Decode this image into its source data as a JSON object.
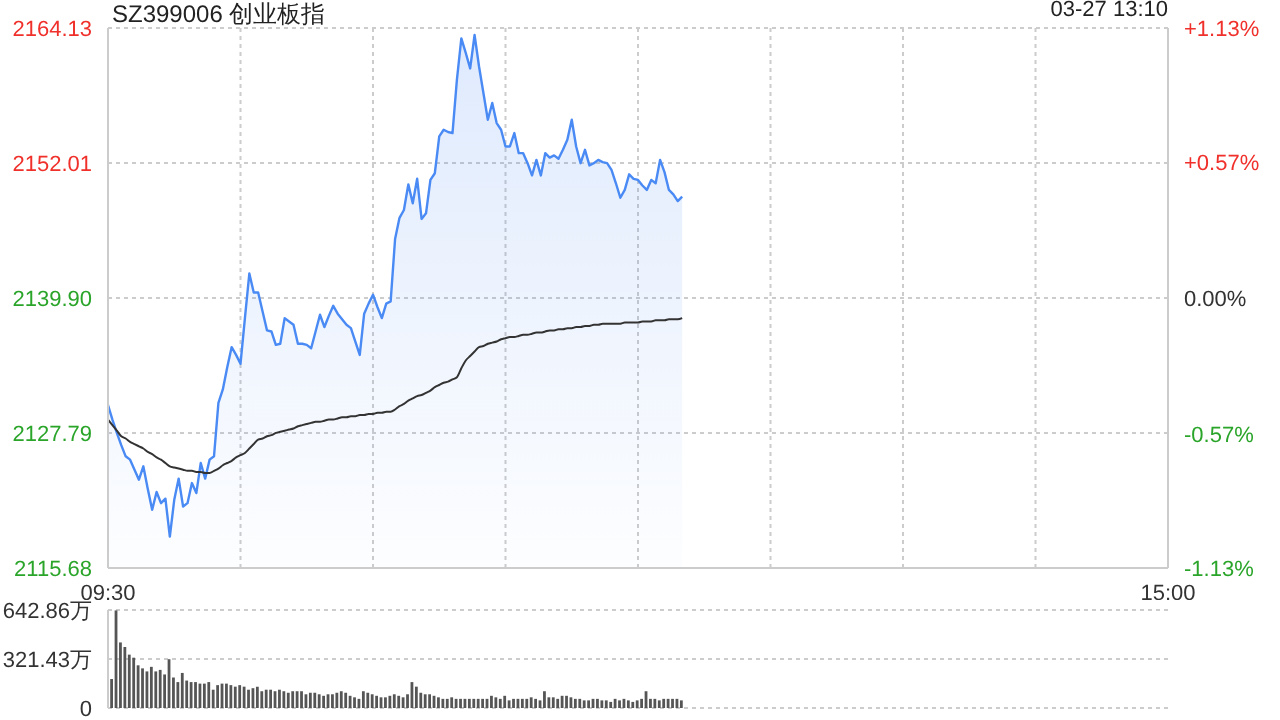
{
  "chart_data": [
    {
      "type": "area",
      "title": "SZ399006 创业板指",
      "annotations": [
        "03-27 13:10"
      ],
      "categories": [
        "09:30",
        null,
        null,
        null,
        null,
        null,
        null,
        null,
        null,
        null,
        null,
        null,
        null,
        null,
        null,
        null,
        null,
        null,
        null,
        null,
        null,
        null,
        null,
        null,
        null,
        null,
        null,
        null,
        null,
        null,
        null,
        null,
        null,
        null,
        null,
        null,
        null,
        null,
        null,
        null,
        null,
        null,
        null,
        null,
        null,
        null,
        null,
        null,
        null,
        null,
        null,
        null,
        null,
        null,
        null,
        null,
        null,
        null,
        null,
        null,
        null,
        null,
        null,
        null,
        null,
        null,
        null,
        null,
        null,
        null,
        null,
        null,
        null,
        null,
        null,
        null,
        null,
        null,
        null,
        null,
        null,
        null,
        null,
        null,
        null,
        null,
        null,
        null,
        null,
        null,
        null,
        null,
        null,
        null,
        null,
        null,
        null,
        null,
        null,
        null,
        null,
        null,
        null,
        null,
        null,
        null,
        null,
        null,
        null,
        null,
        null,
        null,
        null,
        null,
        null,
        null,
        null,
        null,
        null,
        null,
        null,
        null,
        null,
        null,
        null,
        null,
        null,
        null,
        null,
        null,
        null,
        null,
        null,
        null,
        null,
        null,
        null,
        null,
        null,
        null,
        null,
        null,
        null,
        null,
        null,
        null,
        null,
        null,
        null,
        null,
        null,
        null,
        null,
        null,
        null,
        null,
        null,
        null,
        null,
        null,
        null,
        null,
        null,
        null,
        null,
        null,
        null,
        null,
        null,
        null,
        null,
        null,
        null,
        null,
        null,
        null,
        null,
        null,
        null,
        null,
        null,
        null,
        null,
        null,
        null,
        null,
        null,
        null,
        null,
        null,
        null,
        null,
        null,
        null,
        null,
        null,
        null,
        null,
        null,
        null,
        null,
        null,
        null,
        null,
        null,
        null,
        null,
        null,
        null,
        null,
        null,
        null,
        null,
        null,
        null,
        null,
        null,
        null,
        null,
        null,
        null,
        null,
        null,
        null,
        null,
        null,
        null,
        null,
        null,
        null,
        null,
        null,
        null,
        null,
        null,
        null,
        null,
        null,
        null,
        null,
        "15:00"
      ],
      "ylim": [
        2115.68,
        2164.13
      ],
      "yticks": [
        2115.68,
        2127.79,
        {
          "value": 2139.9,
          "label": "2139.90"
        },
        2152.01,
        2164.13
      ],
      "y2lim": [
        -1.13,
        1.13
      ],
      "y2ticks": [
        {
          "value": -1.13,
          "label": "-1.13%"
        },
        {
          "value": -0.57,
          "label": "-0.57%"
        },
        {
          "value": 0,
          "label": "0.00%"
        },
        {
          "value": 0.57,
          "label": "+0.57%"
        },
        {
          "value": 1.13,
          "label": "+1.13%"
        }
      ],
      "grid": true,
      "marker": "none",
      "series": [
        {
          "color": "#4a8af4",
          "values": [
            2130.3,
            2129.0,
            2127.8,
            2126.7,
            2125.7,
            2125.4,
            2124.5,
            2123.6,
            2124.8,
            2122.8,
            2120.9,
            2122.5,
            2121.5,
            2121.9,
            2118.5,
            2121.8,
            2123.7,
            2121.2,
            2121.5,
            2123.3,
            2122.4,
            2125.1,
            2123.7,
            2125.4,
            2125.7,
            2130.5,
            2131.7,
            2133.7,
            2135.5,
            2134.8,
            2134.0,
            2138.1,
            2142.1,
            2140.4,
            2140.4,
            2138.7,
            2137.0,
            2136.9,
            2135.7,
            2135.8,
            2138.1,
            2137.8,
            2137.5,
            2135.8,
            2135.8,
            2135.7,
            2135.4,
            2136.9,
            2138.4,
            2137.3,
            2138.3,
            2139.2,
            2138.5,
            2138.0,
            2137.5,
            2137.2,
            2136.0,
            2134.8,
            2138.5,
            2139.4,
            2140.2,
            2139.1,
            2138.1,
            2139.4,
            2139.6,
            2145.2,
            2147.1,
            2147.8,
            2150.1,
            2148.4,
            2150.6,
            2147.0,
            2147.5,
            2150.5,
            2151.1,
            2154.4,
            2155.0,
            2154.8,
            2154.7,
            2159.5,
            2163.2,
            2161.9,
            2160.5,
            2163.5,
            2160.7,
            2158.3,
            2155.9,
            2157.4,
            2155.6,
            2155.0,
            2153.5,
            2153.5,
            2154.7,
            2152.9,
            2152.9,
            2152.0,
            2150.9,
            2152.3,
            2150.9,
            2152.9,
            2152.5,
            2152.7,
            2152.4,
            2153.2,
            2154.1,
            2155.9,
            2153.5,
            2152.0,
            2153.2,
            2151.8,
            2152.0,
            2152.3,
            2152.1,
            2152.0,
            2151.4,
            2150.2,
            2148.9,
            2149.6,
            2151.0,
            2150.6,
            2150.5,
            2150.0,
            2149.6,
            2150.5,
            2150.2,
            2152.3,
            2151.2,
            2149.6,
            2149.2,
            2148.6,
            2149.0,
            null,
            null,
            null,
            null,
            null,
            null,
            null,
            null,
            null,
            null,
            null,
            null,
            null,
            null,
            null,
            null,
            null,
            null,
            null,
            null,
            null,
            null,
            null,
            null,
            null,
            null,
            null,
            null,
            null,
            null,
            null,
            null,
            null,
            null,
            null,
            null,
            null,
            null,
            null,
            null,
            null,
            null,
            null,
            null,
            null,
            null,
            null,
            null,
            null,
            null,
            null,
            null,
            null,
            null,
            null,
            null,
            null,
            null,
            null,
            null,
            null,
            null,
            null,
            null,
            null,
            null,
            null,
            null,
            null,
            null,
            null,
            null,
            null,
            null,
            null,
            null,
            null,
            null,
            null,
            null,
            null,
            null,
            null,
            null,
            null,
            null,
            null,
            null,
            null,
            null,
            null,
            null,
            null,
            null,
            null,
            null,
            null,
            null,
            null,
            null,
            null,
            null,
            null,
            null,
            null,
            null,
            null,
            null,
            null,
            null
          ]
        },
        {
          "type": "line",
          "color": "#333333",
          "values": [
            2129.0,
            2128.5,
            2128.0,
            2127.5,
            2127.3,
            2127.0,
            2126.8,
            2126.6,
            2126.4,
            2126.1,
            2125.9,
            2125.6,
            2125.4,
            2125.1,
            2124.8,
            2124.7,
            2124.6,
            2124.5,
            2124.4,
            2124.4,
            2124.3,
            2124.3,
            2124.2,
            2124.2,
            2124.4,
            2124.6,
            2124.9,
            2125.1,
            2125.3,
            2125.6,
            2125.8,
            2126.0,
            2126.4,
            2126.8,
            2127.2,
            2127.3,
            2127.5,
            2127.6,
            2127.8,
            2127.9,
            2128.0,
            2128.1,
            2128.2,
            2128.4,
            2128.5,
            2128.6,
            2128.7,
            2128.8,
            2128.8,
            2128.9,
            2129.0,
            2129.0,
            2129.1,
            2129.2,
            2129.2,
            2129.3,
            2129.3,
            2129.4,
            2129.4,
            2129.5,
            2129.5,
            2129.6,
            2129.6,
            2129.7,
            2129.7,
            2129.9,
            2130.2,
            2130.4,
            2130.7,
            2130.9,
            2131.1,
            2131.2,
            2131.4,
            2131.6,
            2131.9,
            2132.1,
            2132.3,
            2132.4,
            2132.6,
            2132.8,
            2133.6,
            2134.3,
            2134.7,
            2135.1,
            2135.5,
            2135.6,
            2135.8,
            2135.9,
            2136.0,
            2136.2,
            2136.3,
            2136.4,
            2136.4,
            2136.5,
            2136.6,
            2136.6,
            2136.7,
            2136.8,
            2136.8,
            2136.9,
            2137.0,
            2137.0,
            2137.1,
            2137.1,
            2137.2,
            2137.2,
            2137.3,
            2137.3,
            2137.4,
            2137.4,
            2137.5,
            2137.5,
            2137.6,
            2137.6,
            2137.6,
            2137.6,
            2137.6,
            2137.7,
            2137.7,
            2137.7,
            2137.7,
            2137.8,
            2137.8,
            2137.8,
            2137.9,
            2137.9,
            2137.9,
            2138.0,
            2138.0,
            2138.0,
            2138.1,
            null,
            null,
            null,
            null,
            null,
            null,
            null,
            null,
            null,
            null,
            null,
            null,
            null,
            null,
            null,
            null,
            null,
            null,
            null,
            null,
            null,
            null,
            null,
            null,
            null,
            null,
            null,
            null,
            null,
            null,
            null,
            null,
            null,
            null,
            null,
            null,
            null,
            null,
            null,
            null,
            null,
            null,
            null,
            null,
            null,
            null,
            null,
            null,
            null,
            null,
            null,
            null,
            null,
            null,
            null,
            null,
            null,
            null,
            null,
            null,
            null,
            null,
            null,
            null,
            null,
            null,
            null,
            null,
            null,
            null,
            null,
            null,
            null,
            null,
            null,
            null,
            null,
            null,
            null,
            null,
            null,
            null,
            null,
            null,
            null,
            null,
            null,
            null,
            null,
            null,
            null,
            null,
            null,
            null,
            null,
            null,
            null,
            null,
            null,
            null,
            null,
            null,
            null,
            null,
            null,
            null,
            null,
            null,
            null,
            null
          ]
        }
      ]
    },
    {
      "type": "bar",
      "tick_labels": "y",
      "grid": "y",
      "categories": [
        null,
        null,
        null,
        null,
        null,
        null,
        null,
        null,
        null,
        null,
        null,
        null,
        null,
        null,
        null,
        null,
        null,
        null,
        null,
        null,
        null,
        null,
        null,
        null,
        null,
        null,
        null,
        null,
        null,
        null,
        null,
        null,
        null,
        null,
        null,
        null,
        null,
        null,
        null,
        null,
        null,
        null,
        null,
        null,
        null,
        null,
        null,
        null,
        null,
        null,
        null,
        null,
        null,
        null,
        null,
        null,
        null,
        null,
        null,
        null,
        null,
        null,
        null,
        null,
        null,
        null,
        null,
        null,
        null,
        null,
        null,
        null,
        null,
        null,
        null,
        null,
        null,
        null,
        null,
        null,
        null,
        null,
        null,
        null,
        null,
        null,
        null,
        null,
        null,
        null,
        null,
        null,
        null,
        null,
        null,
        null,
        null,
        null,
        null,
        null,
        null,
        null,
        null,
        null,
        null,
        null,
        null,
        null,
        null,
        null,
        null,
        null,
        null,
        null,
        null,
        null,
        null,
        null,
        null,
        null,
        null,
        null,
        null,
        null,
        null,
        null,
        null,
        null,
        null,
        null,
        null,
        null,
        null,
        null,
        null,
        null,
        null,
        null,
        null,
        null,
        null,
        null,
        null,
        null,
        null,
        null,
        null,
        null,
        null,
        null,
        null,
        null,
        null,
        null,
        null,
        null,
        null,
        null,
        null,
        null,
        null,
        null,
        null,
        null,
        null,
        null,
        null,
        null,
        null,
        null,
        null,
        null,
        null,
        null,
        null,
        null,
        null,
        null,
        null,
        null,
        null,
        null,
        null,
        null,
        null,
        null,
        null,
        null,
        null,
        null,
        null,
        null,
        null,
        null,
        null,
        null,
        null,
        null,
        null,
        null,
        null,
        null,
        null,
        null,
        null,
        null,
        null,
        null,
        null,
        null,
        null,
        null,
        null,
        null,
        null,
        null,
        null,
        null,
        null,
        null,
        null,
        null,
        null,
        null,
        null,
        null,
        null,
        null,
        null,
        null,
        null,
        null,
        null,
        null,
        null,
        null,
        null,
        null,
        null,
        null,
        null
      ],
      "ylim": [
        0,
        642.86
      ],
      "yticks": [
        {
          "value": 0,
          "label": "0"
        },
        {
          "value": 321.43,
          "label": "321.43万"
        },
        {
          "value": 642.86,
          "label": "642.86万"
        }
      ],
      "series": [
        {
          "color": "#555555",
          "values": [
            null,
            190,
            640,
            430,
            400,
            350,
            330,
            280,
            260,
            240,
            270,
            240,
            250,
            220,
            320,
            200,
            170,
            230,
            180,
            170,
            170,
            160,
            160,
            170,
            120,
            150,
            160,
            160,
            150,
            140,
            150,
            140,
            120,
            130,
            140,
            110,
            120,
            120,
            110,
            120,
            110,
            100,
            110,
            110,
            110,
            90,
            100,
            100,
            90,
            80,
            90,
            90,
            100,
            110,
            100,
            80,
            70,
            60,
            110,
            100,
            90,
            80,
            70,
            70,
            80,
            90,
            80,
            70,
            90,
            170,
            140,
            100,
            90,
            90,
            80,
            70,
            60,
            60,
            70,
            60,
            60,
            60,
            60,
            60,
            60,
            60,
            60,
            80,
            70,
            60,
            80,
            50,
            60,
            60,
            60,
            60,
            70,
            60,
            50,
            110,
            70,
            70,
            60,
            80,
            80,
            70,
            60,
            60,
            50,
            50,
            60,
            60,
            50,
            50,
            40,
            60,
            50,
            60,
            50,
            40,
            50,
            60,
            110,
            60,
            60,
            50,
            60,
            60,
            60,
            60,
            50,
            null,
            null,
            null,
            null,
            null,
            null,
            null,
            null,
            null,
            null,
            null,
            null,
            null,
            null,
            null,
            null,
            null,
            null,
            null,
            null,
            null,
            null,
            null,
            null,
            null,
            null,
            null,
            null,
            null,
            null,
            null,
            null,
            null,
            null,
            null,
            null,
            null,
            null,
            null,
            null,
            null,
            null,
            null,
            null,
            null,
            null,
            null,
            null,
            null,
            null,
            null,
            null,
            null,
            null,
            null,
            null,
            null,
            null,
            null,
            null,
            null,
            null,
            null,
            null,
            null,
            null,
            null,
            null,
            null,
            null,
            null,
            null,
            null,
            null,
            null,
            null,
            null,
            null,
            null,
            null,
            null,
            null,
            null,
            null,
            null,
            null,
            null,
            null,
            null,
            null,
            null,
            null,
            null,
            null,
            null,
            null,
            null,
            null,
            null,
            null,
            null,
            null,
            null,
            null,
            null,
            null,
            null,
            null,
            null,
            null
          ]
        }
      ]
    }
  ]
}
